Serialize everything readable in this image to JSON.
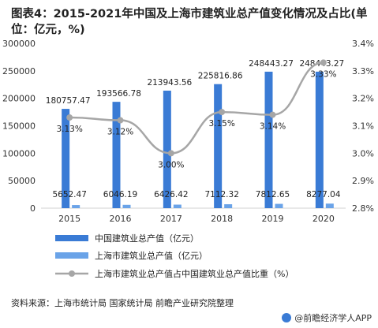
{
  "header": {
    "title": "图表4：2015-2021年中国及上海市建筑业总产值变化情况及占比(单位：亿元，%)"
  },
  "footer": {
    "source": "资料来源：上海市统计局 国家统计局 前瞻产业研究院整理",
    "brand": "@前瞻经济学人APP"
  },
  "chart_data": {
    "type": "bar",
    "categories": [
      "2015",
      "2016",
      "2017",
      "2018",
      "2019",
      "2020"
    ],
    "series": [
      {
        "name": "中国建筑业总产值（亿元）",
        "type": "bar",
        "axis": "left",
        "color": "#3a7bd5",
        "values": [
          180757.47,
          193566.78,
          213943.56,
          225816.86,
          248443.27,
          248443.27
        ]
      },
      {
        "name": "上海市建筑业总产值（亿元）",
        "type": "bar",
        "axis": "left",
        "color": "#6aa3e8",
        "values": [
          5652.47,
          6046.19,
          6426.42,
          7112.32,
          7812.65,
          8277.04
        ]
      },
      {
        "name": "上海市建筑业总产值占中国建筑业总产值比重（%）",
        "type": "line",
        "axis": "right",
        "color": "#a6a6a6",
        "values": [
          3.13,
          3.12,
          3.0,
          3.15,
          3.14,
          3.33
        ]
      }
    ],
    "bar_labels": [
      [
        "180757.47",
        "193566.78",
        "213943.56",
        "225816.86",
        "248443.27",
        "248443.27"
      ],
      [
        "5652.47",
        "6046.19",
        "6426.42",
        "7112.32",
        "7812.65",
        "8277.04"
      ]
    ],
    "line_labels": [
      "3.13%",
      "3.12%",
      "3.00%",
      "3.15%",
      "3.14%",
      "3.33%"
    ],
    "y_left": {
      "min": 0,
      "max": 300000,
      "ticks": [
        "0",
        "50000",
        "100000",
        "150000",
        "200000",
        "250000",
        "300000"
      ]
    },
    "y_right": {
      "min": 2.8,
      "max": 3.4,
      "ticks": [
        "2.8%",
        "2.9%",
        "3.0%",
        "3.1%",
        "3.2%",
        "3.3%",
        "3.4%"
      ]
    },
    "legend_position": "bottom-left",
    "grid": false
  }
}
